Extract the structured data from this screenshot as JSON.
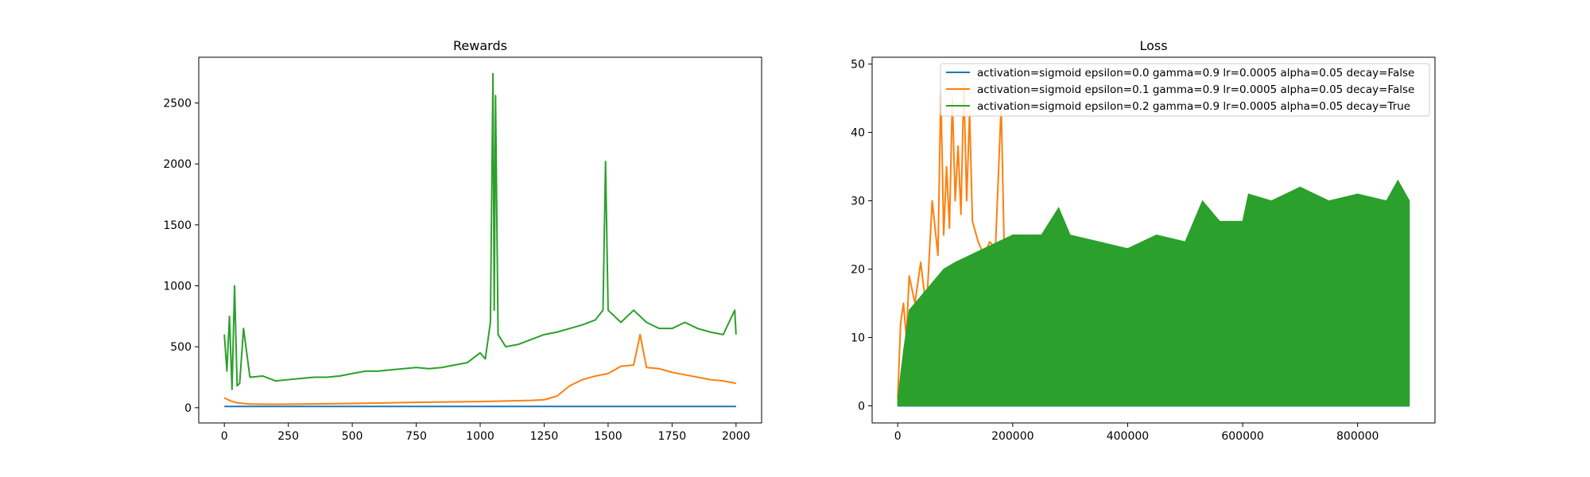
{
  "chart_data": [
    {
      "type": "line",
      "title": "Rewards",
      "xlabel": "",
      "ylabel": "",
      "xlim": [
        -100,
        2100
      ],
      "ylim": [
        -125,
        2875
      ],
      "xticks": [
        0,
        250,
        500,
        750,
        1000,
        1250,
        1500,
        1750,
        2000
      ],
      "yticks": [
        0,
        500,
        1000,
        1500,
        2000,
        2500
      ],
      "grid": false,
      "series": [
        {
          "color": "#1f77b4",
          "points": [
            [
              0,
              10
            ],
            [
              500,
              10
            ],
            [
              1000,
              10
            ],
            [
              1500,
              10
            ],
            [
              2000,
              10
            ]
          ]
        },
        {
          "color": "#ff7f0e",
          "points": [
            [
              0,
              80
            ],
            [
              25,
              55
            ],
            [
              50,
              40
            ],
            [
              100,
              30
            ],
            [
              200,
              28
            ],
            [
              300,
              30
            ],
            [
              400,
              32
            ],
            [
              500,
              35
            ],
            [
              600,
              38
            ],
            [
              700,
              42
            ],
            [
              800,
              45
            ],
            [
              900,
              48
            ],
            [
              1000,
              50
            ],
            [
              1100,
              55
            ],
            [
              1200,
              60
            ],
            [
              1250,
              65
            ],
            [
              1300,
              95
            ],
            [
              1350,
              180
            ],
            [
              1400,
              230
            ],
            [
              1450,
              260
            ],
            [
              1500,
              280
            ],
            [
              1550,
              340
            ],
            [
              1600,
              350
            ],
            [
              1625,
              600
            ],
            [
              1650,
              330
            ],
            [
              1700,
              320
            ],
            [
              1750,
              290
            ],
            [
              1800,
              270
            ],
            [
              1850,
              250
            ],
            [
              1900,
              230
            ],
            [
              1950,
              220
            ],
            [
              2000,
              200
            ]
          ]
        },
        {
          "color": "#2ca02c",
          "points": [
            [
              0,
              600
            ],
            [
              10,
              300
            ],
            [
              20,
              750
            ],
            [
              30,
              150
            ],
            [
              40,
              1000
            ],
            [
              50,
              180
            ],
            [
              60,
              200
            ],
            [
              75,
              650
            ],
            [
              100,
              250
            ],
            [
              150,
              260
            ],
            [
              200,
              220
            ],
            [
              250,
              230
            ],
            [
              300,
              240
            ],
            [
              350,
              250
            ],
            [
              400,
              250
            ],
            [
              450,
              260
            ],
            [
              500,
              280
            ],
            [
              550,
              300
            ],
            [
              600,
              300
            ],
            [
              650,
              310
            ],
            [
              700,
              320
            ],
            [
              750,
              330
            ],
            [
              800,
              320
            ],
            [
              850,
              330
            ],
            [
              900,
              350
            ],
            [
              950,
              370
            ],
            [
              1000,
              450
            ],
            [
              1020,
              400
            ],
            [
              1040,
              700
            ],
            [
              1050,
              2740
            ],
            [
              1055,
              800
            ],
            [
              1060,
              2560
            ],
            [
              1070,
              600
            ],
            [
              1100,
              500
            ],
            [
              1150,
              520
            ],
            [
              1200,
              560
            ],
            [
              1250,
              600
            ],
            [
              1300,
              620
            ],
            [
              1350,
              650
            ],
            [
              1400,
              680
            ],
            [
              1450,
              720
            ],
            [
              1480,
              800
            ],
            [
              1490,
              2020
            ],
            [
              1500,
              800
            ],
            [
              1550,
              700
            ],
            [
              1600,
              800
            ],
            [
              1650,
              700
            ],
            [
              1700,
              650
            ],
            [
              1750,
              650
            ],
            [
              1800,
              700
            ],
            [
              1850,
              650
            ],
            [
              1900,
              620
            ],
            [
              1950,
              600
            ],
            [
              1995,
              800
            ],
            [
              2000,
              600
            ]
          ]
        }
      ]
    },
    {
      "type": "line",
      "title": "Loss",
      "xlabel": "",
      "ylabel": "",
      "xlim": [
        -44500,
        934500
      ],
      "ylim": [
        -2.5,
        51
      ],
      "xticks": [
        0,
        200000,
        400000,
        600000,
        800000
      ],
      "yticks": [
        0,
        10,
        20,
        30,
        40,
        50
      ],
      "grid": false,
      "legend": {
        "position": "upper right",
        "entries": [
          "activation=sigmoid epsilon=0.0 gamma=0.9 lr=0.0005 alpha=0.05 decay=False",
          "activation=sigmoid epsilon=0.1 gamma=0.9 lr=0.0005 alpha=0.05 decay=False",
          "activation=sigmoid epsilon=0.2 gamma=0.9 lr=0.0005 alpha=0.05 decay=True"
        ]
      },
      "series": [
        {
          "name": "activation=sigmoid epsilon=0.0 gamma=0.9 lr=0.0005 alpha=0.05 decay=False",
          "color": "#1f77b4",
          "points": [
            [
              0,
              0
            ],
            [
              890000,
              0
            ]
          ]
        },
        {
          "name": "activation=sigmoid epsilon=0.1 gamma=0.9 lr=0.0005 alpha=0.05 decay=False",
          "color": "#ff7f0e",
          "points": [
            [
              0,
              1
            ],
            [
              5000,
              12
            ],
            [
              10000,
              15
            ],
            [
              15000,
              10
            ],
            [
              20000,
              19
            ],
            [
              30000,
              15
            ],
            [
              40000,
              21
            ],
            [
              50000,
              14
            ],
            [
              60000,
              30
            ],
            [
              70000,
              22
            ],
            [
              75000,
              46
            ],
            [
              80000,
              25
            ],
            [
              85000,
              35
            ],
            [
              90000,
              26
            ],
            [
              95000,
              45
            ],
            [
              100000,
              30
            ],
            [
              105000,
              38
            ],
            [
              110000,
              28
            ],
            [
              115000,
              47
            ],
            [
              120000,
              30
            ],
            [
              125000,
              43
            ],
            [
              130000,
              27
            ],
            [
              140000,
              24
            ],
            [
              150000,
              22
            ],
            [
              160000,
              24
            ],
            [
              170000,
              23
            ],
            [
              180000,
              44
            ],
            [
              185000,
              24
            ],
            [
              200000,
              22
            ],
            [
              210000,
              23
            ],
            [
              220000,
              22
            ]
          ]
        },
        {
          "name": "activation=sigmoid epsilon=0.2 gamma=0.9 lr=0.0005 alpha=0.05 decay=True",
          "color": "#2ca02c",
          "upper": [
            [
              0,
              1
            ],
            [
              10000,
              8
            ],
            [
              20000,
              14
            ],
            [
              30000,
              15
            ],
            [
              50000,
              17
            ],
            [
              80000,
              20
            ],
            [
              100000,
              21
            ],
            [
              150000,
              23
            ],
            [
              200000,
              25
            ],
            [
              250000,
              25
            ],
            [
              280000,
              29
            ],
            [
              300000,
              25
            ],
            [
              350000,
              24
            ],
            [
              400000,
              23
            ],
            [
              450000,
              25
            ],
            [
              500000,
              24
            ],
            [
              530000,
              30
            ],
            [
              560000,
              27
            ],
            [
              600000,
              27
            ],
            [
              610000,
              31
            ],
            [
              650000,
              30
            ],
            [
              700000,
              32
            ],
            [
              750000,
              30
            ],
            [
              800000,
              31
            ],
            [
              850000,
              30
            ],
            [
              870000,
              33
            ],
            [
              890000,
              30
            ]
          ],
          "lower": 0
        }
      ]
    }
  ]
}
